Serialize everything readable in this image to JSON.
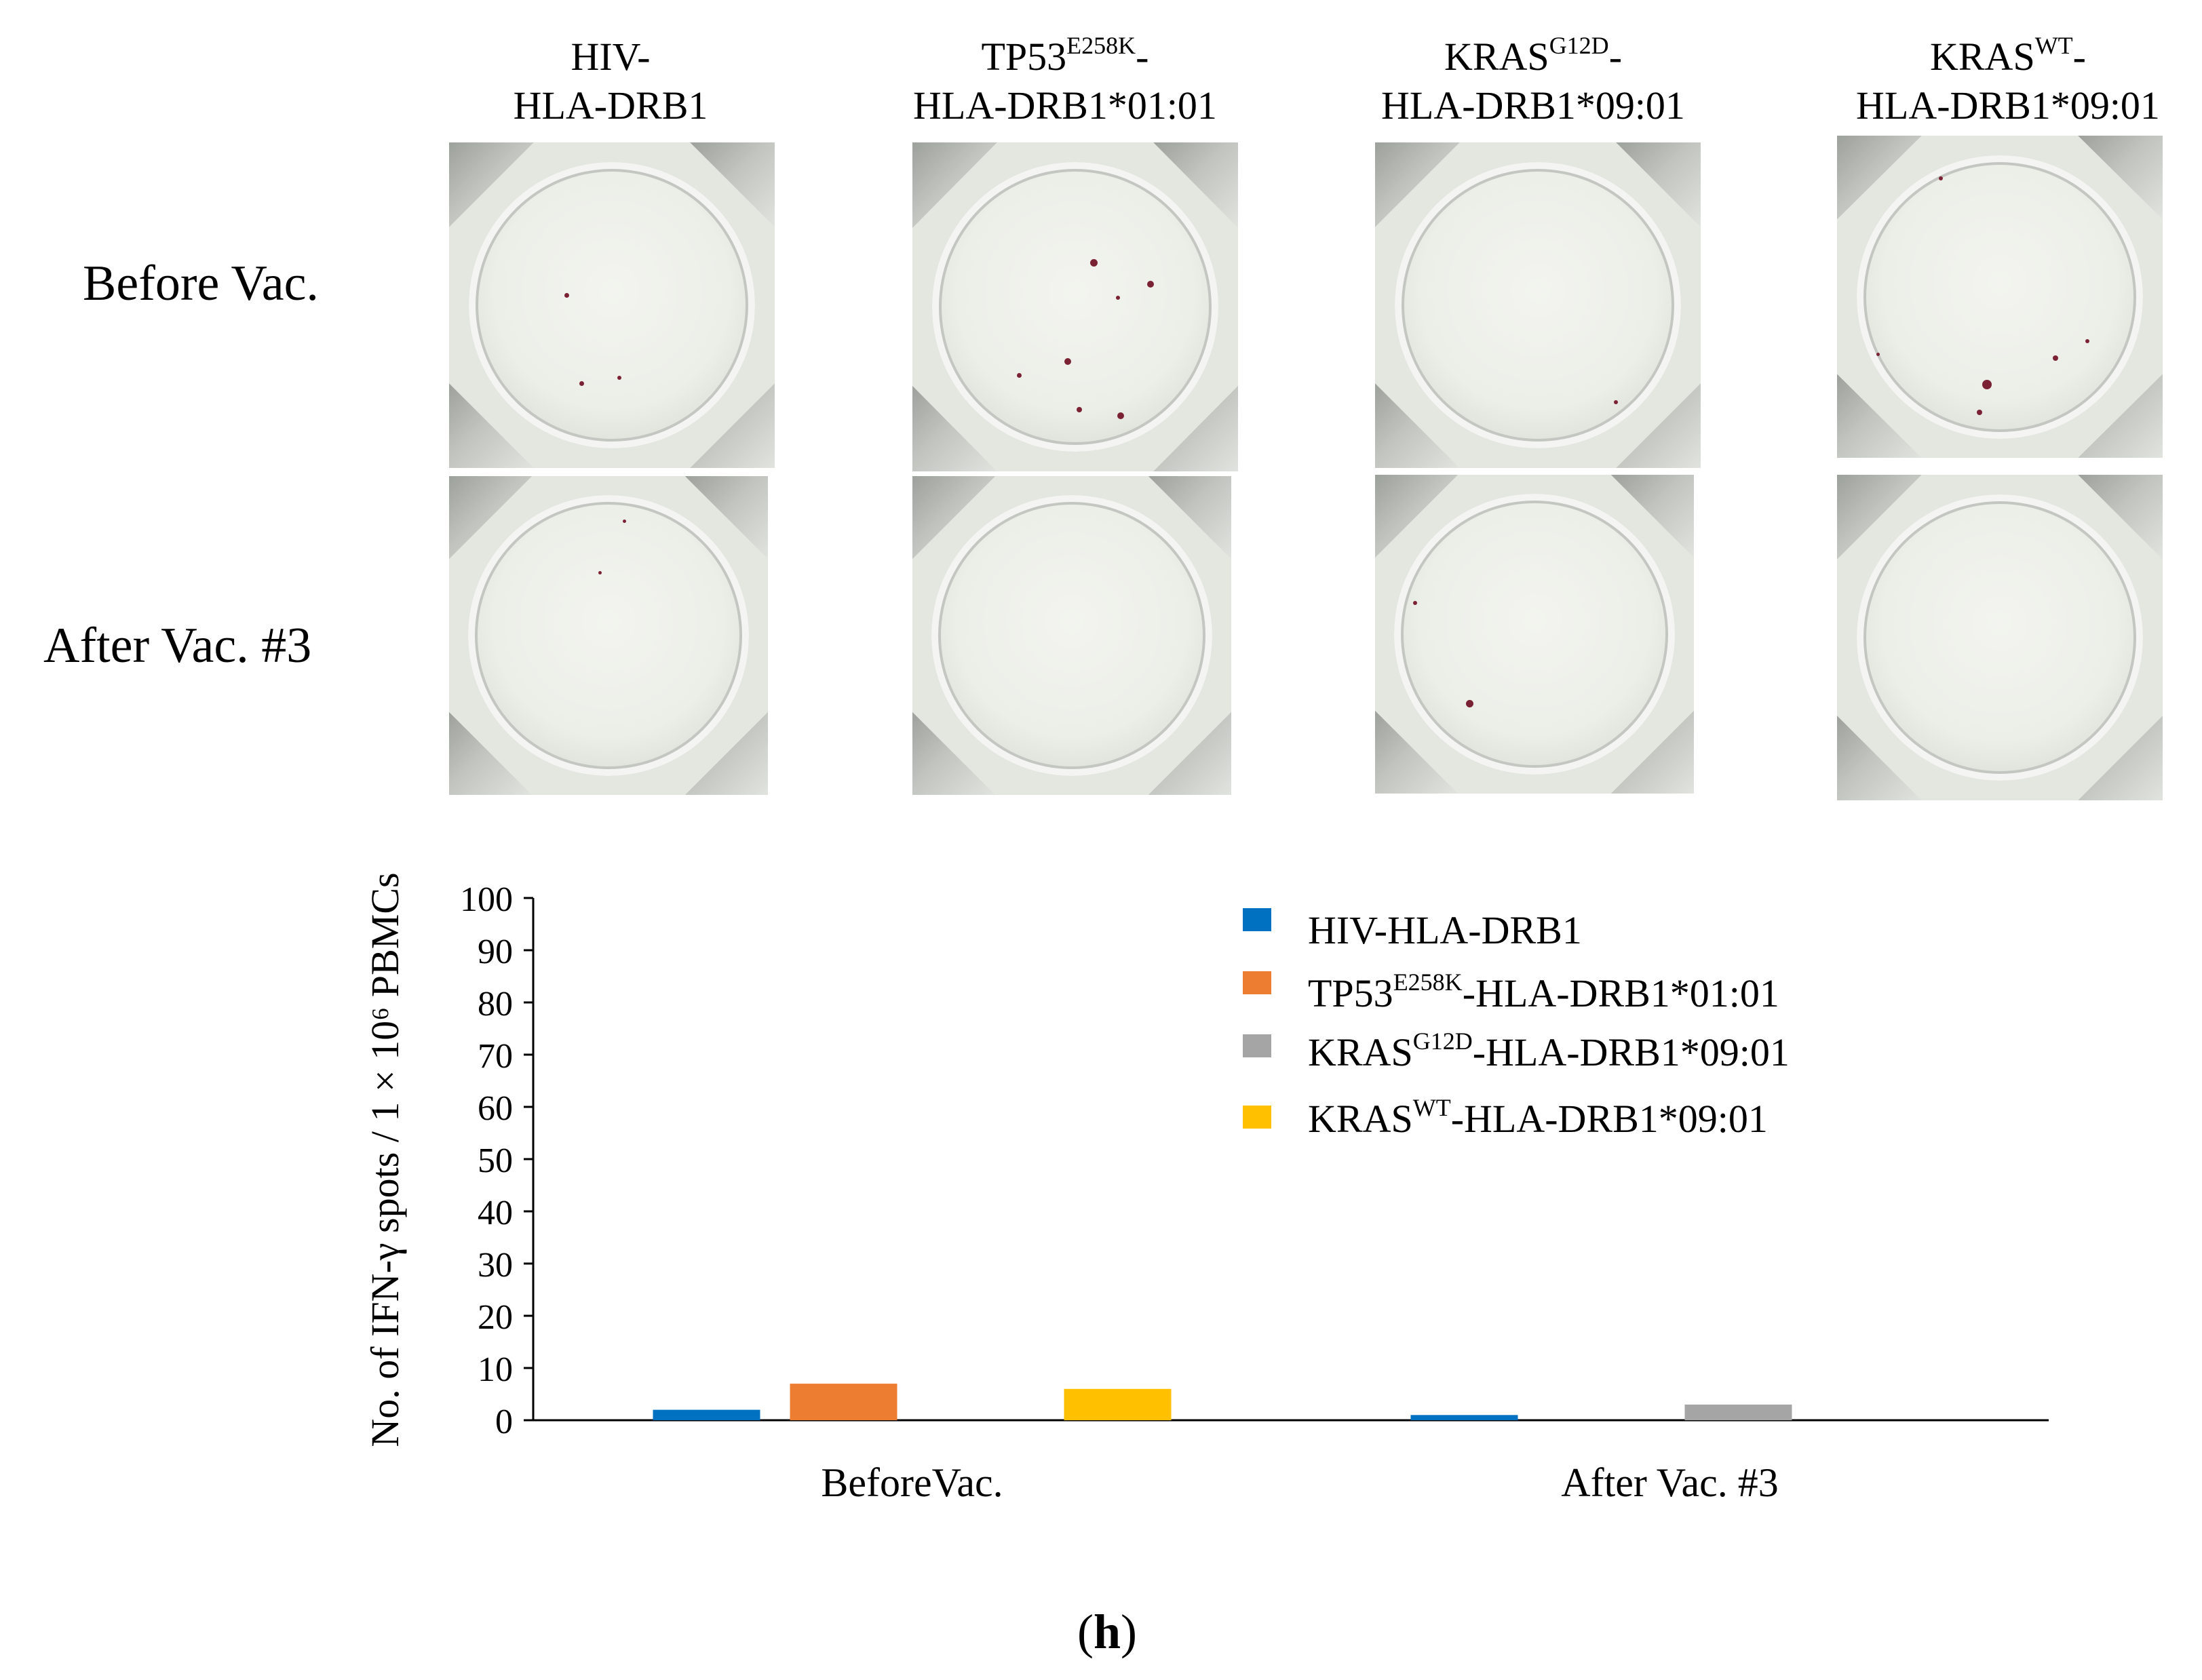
{
  "columns": [
    {
      "line1_base": "HIV-",
      "line1_sup": "",
      "line1_tail": "",
      "line2": "HLA-DRB1"
    },
    {
      "line1_base": "TP53",
      "line1_sup": "E258K",
      "line1_tail": "-",
      "line2": "HLA-DRB1*01:01"
    },
    {
      "line1_base": "KRAS",
      "line1_sup": "G12D",
      "line1_tail": "-",
      "line2": "HLA-DRB1*09:01"
    },
    {
      "line1_base": "KRAS",
      "line1_sup": "WT",
      "line1_tail": "-",
      "line2": "HLA-DRB1*09:01"
    }
  ],
  "rows": [
    "Before Vac.",
    "After Vac. #3"
  ],
  "chart_data": {
    "type": "bar",
    "categories": [
      "BeforeVac.",
      "After Vac. #3"
    ],
    "series": [
      {
        "name": "HIV-HLA-DRB1",
        "name_base": "HIV-HLA-DRB1",
        "name_sup": "",
        "name_tail": "",
        "color": "#0070c0",
        "values": [
          2,
          1
        ]
      },
      {
        "name": "TP53E258K-HLA-DRB1*01:01",
        "name_base": "TP53",
        "name_sup": "E258K",
        "name_tail": "-HLA-DRB1*01:01",
        "color": "#ed7d31",
        "values": [
          7,
          0
        ]
      },
      {
        "name": "KRASG12D-HLA-DRB1*09:01",
        "name_base": "KRAS",
        "name_sup": "G12D",
        "name_tail": "-HLA-DRB1*09:01",
        "color": "#a5a5a5",
        "values": [
          0,
          3
        ]
      },
      {
        "name": "KRASWT-HLA-DRB1*09:01",
        "name_base": "KRAS",
        "name_sup": "WT",
        "name_tail": "-HLA-DRB1*09:01",
        "color": "#ffc000",
        "values": [
          6,
          0
        ]
      }
    ],
    "ylabel": "No. of IFN-γ spots / 1 × 10⁶ PBMCs",
    "ylim": [
      0,
      100
    ],
    "yticks": [
      0,
      10,
      20,
      30,
      40,
      50,
      60,
      70,
      80,
      90,
      100
    ],
    "legend_position": "top-right"
  },
  "panel_label": {
    "open": "(",
    "letter": "h",
    "close": ")"
  }
}
